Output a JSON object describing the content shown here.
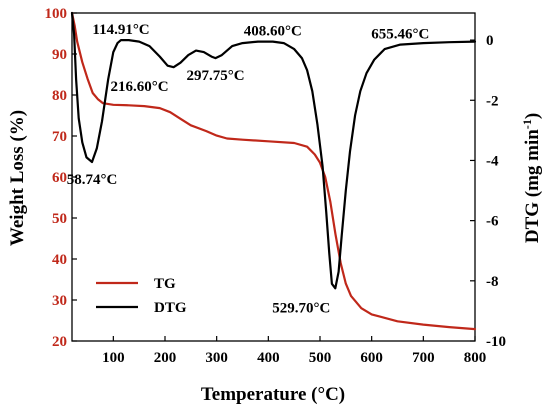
{
  "chart_data": {
    "type": "line",
    "xlabel": "Temperature (°C)",
    "ylabel_left": "Weight Loss (%)",
    "ylabel_right": "DTG (mg min",
    "ylabel_right_exponent": "-1",
    "ylabel_right_suffix": ")",
    "xlim": [
      20,
      800
    ],
    "ylim_left": [
      20,
      100
    ],
    "ylim_right": [
      -10,
      0.9
    ],
    "x_ticks": [
      100,
      200,
      300,
      400,
      500,
      600,
      700,
      800
    ],
    "y_left_ticks": [
      20,
      30,
      40,
      50,
      60,
      70,
      80,
      90,
      100
    ],
    "y_right_ticks": [
      0,
      -2,
      -4,
      -6,
      -8,
      -10
    ],
    "legend_position": "bottom-left",
    "colors": {
      "tg": "#c0281a",
      "dtg": "#000000",
      "left_axis": "#c0281a",
      "right_axis": "#000000"
    },
    "series": [
      {
        "name": "TG",
        "axis": "left",
        "color": "#c0281a",
        "points": [
          [
            20,
            100
          ],
          [
            25,
            97
          ],
          [
            30,
            93
          ],
          [
            40,
            88
          ],
          [
            50,
            84
          ],
          [
            60,
            80.5
          ],
          [
            70,
            79
          ],
          [
            80,
            78
          ],
          [
            100,
            77.6
          ],
          [
            130,
            77.5
          ],
          [
            160,
            77.3
          ],
          [
            190,
            76.8
          ],
          [
            210,
            75.8
          ],
          [
            230,
            74.2
          ],
          [
            250,
            72.6
          ],
          [
            280,
            71.2
          ],
          [
            300,
            70.1
          ],
          [
            320,
            69.4
          ],
          [
            350,
            69.1
          ],
          [
            400,
            68.7
          ],
          [
            450,
            68.3
          ],
          [
            475,
            67.4
          ],
          [
            490,
            65.5
          ],
          [
            500,
            63.5
          ],
          [
            510,
            60
          ],
          [
            520,
            54
          ],
          [
            530,
            46
          ],
          [
            540,
            39
          ],
          [
            550,
            34
          ],
          [
            560,
            31
          ],
          [
            580,
            28
          ],
          [
            600,
            26.5
          ],
          [
            650,
            24.8
          ],
          [
            700,
            24
          ],
          [
            750,
            23.4
          ],
          [
            800,
            22.9
          ]
        ]
      },
      {
        "name": "DTG",
        "axis": "right",
        "color": "#000000",
        "points": [
          [
            20,
            0.9
          ],
          [
            24,
            0.2
          ],
          [
            28,
            -1.3
          ],
          [
            33,
            -2.6
          ],
          [
            40,
            -3.4
          ],
          [
            48,
            -3.9
          ],
          [
            58.74,
            -4.05
          ],
          [
            68,
            -3.6
          ],
          [
            78,
            -2.7
          ],
          [
            90,
            -1.3
          ],
          [
            100,
            -0.4
          ],
          [
            108,
            -0.1
          ],
          [
            114.91,
            0.0
          ],
          [
            130,
            0.0
          ],
          [
            150,
            -0.05
          ],
          [
            170,
            -0.2
          ],
          [
            190,
            -0.55
          ],
          [
            205,
            -0.85
          ],
          [
            216.6,
            -0.9
          ],
          [
            230,
            -0.75
          ],
          [
            245,
            -0.5
          ],
          [
            260,
            -0.35
          ],
          [
            275,
            -0.4
          ],
          [
            290,
            -0.55
          ],
          [
            297.75,
            -0.6
          ],
          [
            310,
            -0.5
          ],
          [
            330,
            -0.2
          ],
          [
            350,
            -0.1
          ],
          [
            380,
            -0.05
          ],
          [
            408.6,
            -0.05
          ],
          [
            430,
            -0.1
          ],
          [
            450,
            -0.3
          ],
          [
            465,
            -0.6
          ],
          [
            475,
            -1.0
          ],
          [
            485,
            -1.7
          ],
          [
            495,
            -2.8
          ],
          [
            505,
            -4.2
          ],
          [
            512,
            -5.7
          ],
          [
            518,
            -7.1
          ],
          [
            523,
            -8.1
          ],
          [
            529.7,
            -8.25
          ],
          [
            536,
            -7.7
          ],
          [
            542,
            -6.5
          ],
          [
            550,
            -5.0
          ],
          [
            558,
            -3.7
          ],
          [
            568,
            -2.5
          ],
          [
            578,
            -1.7
          ],
          [
            590,
            -1.1
          ],
          [
            605,
            -0.65
          ],
          [
            625,
            -0.3
          ],
          [
            655.46,
            -0.15
          ],
          [
            700,
            -0.1
          ],
          [
            750,
            -0.07
          ],
          [
            800,
            -0.05
          ]
        ]
      }
    ],
    "annotations": [
      {
        "text": "114.91°C",
        "x": 114.91,
        "y": 0.0,
        "axis": "right",
        "anchor": "above"
      },
      {
        "text": "408.60°C",
        "x": 408.6,
        "y": -0.05,
        "axis": "right",
        "anchor": "above"
      },
      {
        "text": "655.46°C",
        "x": 655.46,
        "y": -0.15,
        "axis": "right",
        "anchor": "above"
      },
      {
        "text": "216.60°C",
        "x": 216.6,
        "y": -0.9,
        "axis": "right",
        "anchor": "below-left"
      },
      {
        "text": "297.75°C",
        "x": 297.75,
        "y": -0.6,
        "axis": "right",
        "anchor": "below"
      },
      {
        "text": "58.74°C",
        "x": 58.74,
        "y": -4.05,
        "axis": "right",
        "anchor": "below"
      },
      {
        "text": "529.70°C",
        "x": 529.7,
        "y": -8.25,
        "axis": "right",
        "anchor": "below-left"
      }
    ]
  }
}
